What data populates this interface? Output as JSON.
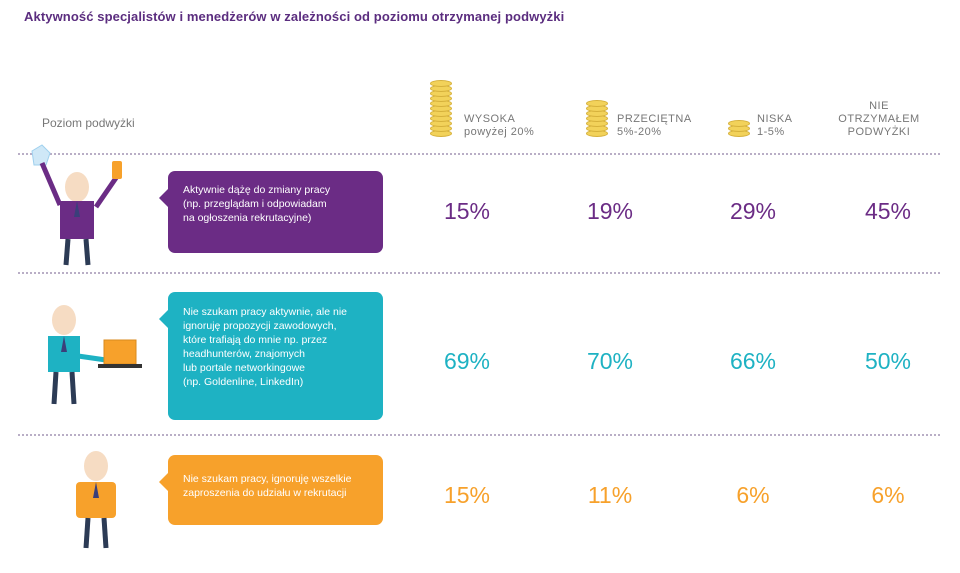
{
  "title": "Aktywność specjalistów i menedżerów w zależności od poziomu otrzymanej podwyżki",
  "row_label_heading": "Poziom podwyżki",
  "colors": {
    "title": "#5b2d7f",
    "purple": "#6b2c85",
    "teal": "#1eb2c3",
    "orange": "#f7a12b",
    "coin": "#f2d25a"
  },
  "chart_data": {
    "type": "table",
    "title": "Aktywność specjalistów i menedżerów w zależności od poziomu otrzymanej podwyżki",
    "columns": [
      {
        "line1": "WYSOKA",
        "line2": "powyżej 20%",
        "line3": ""
      },
      {
        "line1": "PRZECIĘTNA",
        "line2": "5%-20%",
        "line3": ""
      },
      {
        "line1": "NISKA",
        "line2": "1-5%",
        "line3": ""
      },
      {
        "line1": "NIE",
        "line2": "OTRZYMAŁEM",
        "line3": "PODWYŻKI"
      }
    ],
    "rows": [
      {
        "label": "Aktywnie dążę do zmiany pracy\n(np. przeglądam i odpowiadam\nna ogłoszenia rekrutacyjne)",
        "values": [
          "15%",
          "19%",
          "29%",
          "45%"
        ],
        "color": "#6b2c85"
      },
      {
        "label": "Nie szukam pracy aktywnie, ale nie\nignoruję propozycji zawodowych,\nktóre trafiają do mnie np. przez\nheadhunterów, znajomych\nlub portale networkingowe\n(np. Goldenline, LinkedIn)",
        "values": [
          "69%",
          "70%",
          "66%",
          "50%"
        ],
        "color": "#1eb2c3"
      },
      {
        "label": "Nie szukam pracy, ignoruję wszelkie\nzaproszenia do udziału w rekrutacji",
        "values": [
          "15%",
          "11%",
          "6%",
          "6%"
        ],
        "color": "#f7a12b"
      }
    ]
  }
}
